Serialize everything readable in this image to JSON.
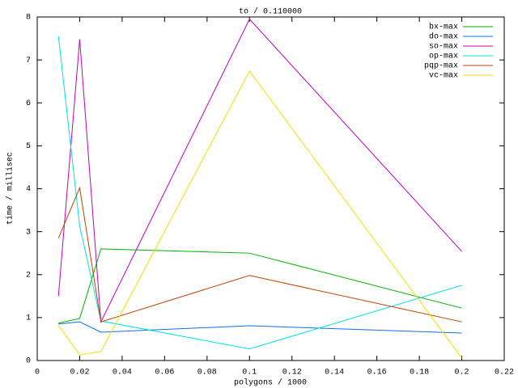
{
  "chart_data": {
    "type": "line",
    "title": "to / 0.110000",
    "x_label": "polygons / 1000",
    "y_label": "time / millisec",
    "x": [
      0.01,
      0.02,
      0.03,
      0.1,
      0.2
    ],
    "series": [
      {
        "name": "bx-max",
        "color": "#00b000",
        "values": [
          0.87,
          0.98,
          2.6,
          2.5,
          1.22
        ]
      },
      {
        "name": "do-max",
        "color": "#1070e0",
        "values": [
          0.85,
          0.9,
          0.66,
          0.81,
          0.64
        ]
      },
      {
        "name": "so-max",
        "color": "#c000c0",
        "values": [
          1.5,
          7.48,
          0.9,
          7.95,
          2.54
        ]
      },
      {
        "name": "op-max",
        "color": "#00e0e0",
        "values": [
          7.55,
          3.13,
          0.92,
          0.27,
          1.75
        ]
      },
      {
        "name": "pqp-max",
        "color": "#c04000",
        "values": [
          2.85,
          4.02,
          0.9,
          1.98,
          0.9
        ]
      },
      {
        "name": "vc-max",
        "color": "#f0e000",
        "values": [
          0.82,
          0.13,
          0.21,
          6.74,
          0.06
        ]
      }
    ],
    "xlim": [
      0,
      0.22
    ],
    "xticks": [
      0,
      0.02,
      0.04,
      0.06,
      0.08,
      0.1,
      0.12,
      0.14,
      0.16,
      0.18,
      0.2,
      0.22
    ],
    "ylim": [
      0,
      8
    ],
    "yticks": [
      0,
      1,
      2,
      3,
      4,
      5,
      6,
      7,
      8
    ],
    "legend": "top-right"
  }
}
